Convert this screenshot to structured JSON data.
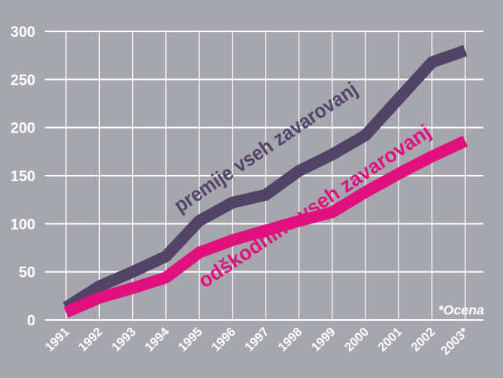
{
  "chart_data": {
    "type": "line",
    "x": [
      "1991",
      "1992",
      "1993",
      "1994",
      "1995",
      "1996",
      "1997",
      "1998",
      "1999",
      "2000",
      "2001",
      "2002",
      "2003*"
    ],
    "series": [
      {
        "name": "premije vseh zavarovanj",
        "color": "#524467",
        "values": [
          13,
          35,
          50,
          66,
          103,
          122,
          130,
          155,
          172,
          192,
          230,
          268,
          280
        ]
      },
      {
        "name": "odškodnine vseh zavarovanj",
        "color": "#e0117d",
        "values": [
          8,
          23,
          33,
          44,
          70,
          83,
          93,
          103,
          112,
          133,
          152,
          170,
          186
        ]
      }
    ],
    "yticks": [
      "0",
      "50",
      "100",
      "150",
      "200",
      "250",
      "300"
    ],
    "ylim": [
      0,
      300
    ],
    "grid": true,
    "legend": "inline labels along lines",
    "note": "*Ocena",
    "background": "#a6a6ae"
  }
}
